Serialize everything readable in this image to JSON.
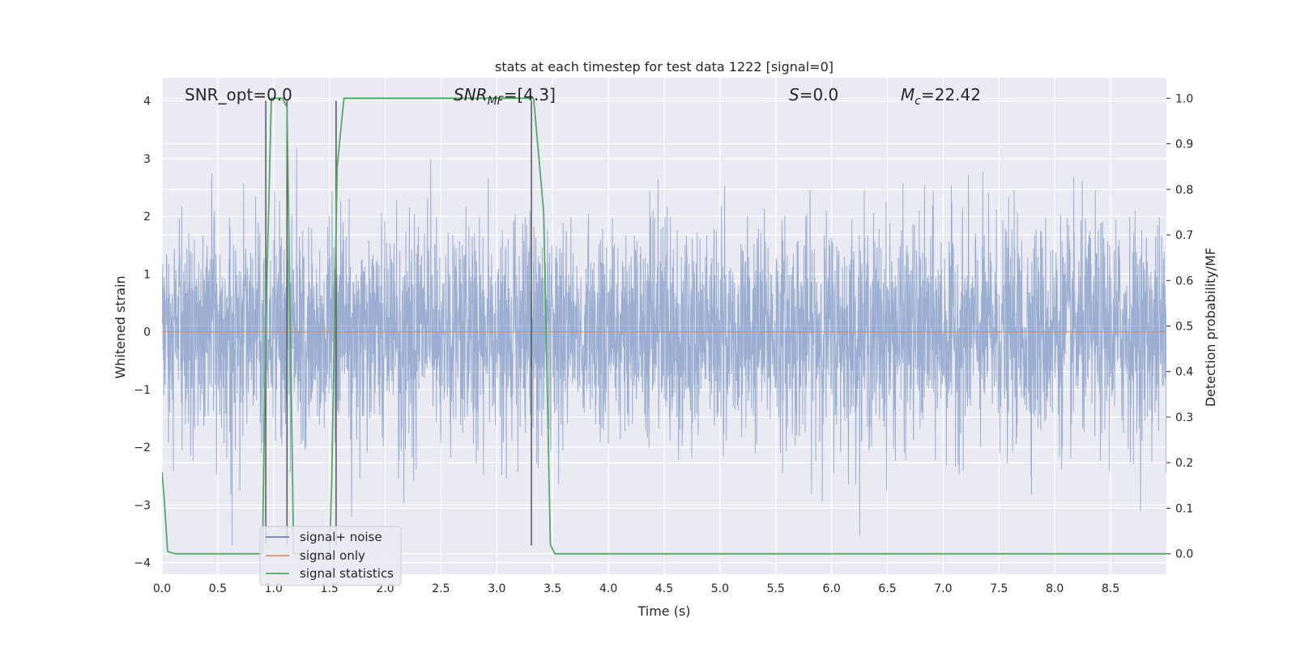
{
  "chart_data": {
    "type": "line",
    "title": "stats at each timestep for test data 1222 [signal=0]",
    "xlabel": "Time (s)",
    "ylabel": "Whitened strain",
    "y2label": "Detection probability/MF",
    "xlim": [
      0.0,
      9.0
    ],
    "ylim": [
      -4.2,
      4.4
    ],
    "y2lim": [
      -0.045,
      1.045
    ],
    "xticks": [
      0.0,
      0.5,
      1.0,
      1.5,
      2.0,
      2.5,
      3.0,
      3.5,
      4.0,
      4.5,
      5.0,
      5.5,
      6.0,
      6.5,
      7.0,
      7.5,
      8.0,
      8.5
    ],
    "yticks": [
      4,
      3,
      2,
      1,
      0,
      -1,
      -2,
      -3,
      -4
    ],
    "y2ticks": [
      1.0,
      0.9,
      0.8,
      0.7,
      0.6,
      0.5,
      0.4,
      0.3,
      0.2,
      0.1,
      0.0
    ],
    "grid": true,
    "legend_position": "lower-left",
    "annotations": {
      "snr_opt": "SNR_opt=0.0",
      "snr_mf_name": "SNR",
      "snr_mf_sub": "MF",
      "snr_mf_value": "=[4.3]",
      "s_name": "S",
      "s_value": "=0.0",
      "mc_name": "M",
      "mc_sub": "c",
      "mc_value": "=22.42"
    },
    "series": [
      {
        "name": "signal+ noise",
        "color": "#4c72b0",
        "kind": "noise",
        "amplitude_typical": 1.3,
        "amplitude_peak_min": -3.7,
        "amplitude_peak_max": 4.0,
        "x_range": [
          0.0,
          9.0
        ]
      },
      {
        "name": "signal only",
        "color": "#dd8452",
        "x": [
          0.0,
          9.0
        ],
        "y": [
          0.0,
          0.0
        ]
      },
      {
        "name": "signal statistics",
        "color": "#55a868",
        "axis": "right",
        "x": [
          0.0,
          0.02,
          0.05,
          0.12,
          0.5,
          0.9,
          0.93,
          0.98,
          1.03,
          1.08,
          1.12,
          1.18,
          1.5,
          1.52,
          1.57,
          1.63,
          2.2,
          3.3,
          3.33,
          3.42,
          3.48,
          3.52,
          4.0,
          9.0
        ],
        "y": [
          0.18,
          0.12,
          0.005,
          0.0,
          0.0,
          0.0,
          0.5,
          1.0,
          1.0,
          1.0,
          0.98,
          0.0,
          0.0,
          0.15,
          0.85,
          1.0,
          1.0,
          1.0,
          1.0,
          0.75,
          0.02,
          0.0,
          0.0,
          0.0
        ]
      }
    ],
    "vlines": {
      "color": "#555555",
      "x": [
        0.93,
        1.12,
        1.56,
        3.31
      ],
      "y_from": -3.7,
      "y_to": 4.0
    },
    "legend": [
      {
        "label": "signal+ noise",
        "color": "#4c72b0"
      },
      {
        "label": "signal only",
        "color": "#dd8452"
      },
      {
        "label": "signal statistics",
        "color": "#55a868"
      }
    ]
  }
}
